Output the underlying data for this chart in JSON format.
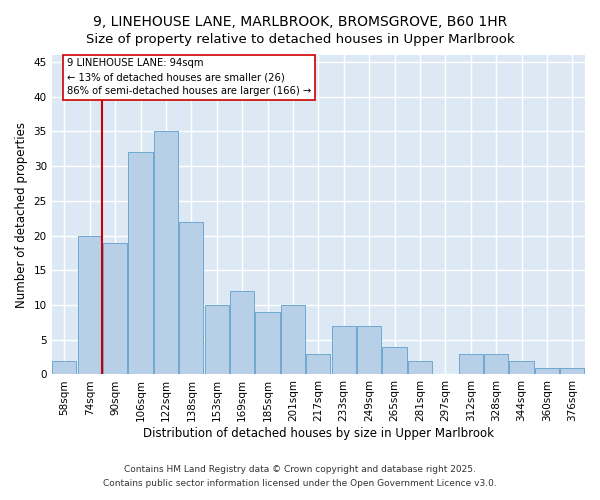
{
  "title1": "9, LINEHOUSE LANE, MARLBROOK, BROMSGROVE, B60 1HR",
  "title2": "Size of property relative to detached houses in Upper Marlbrook",
  "xlabel": "Distribution of detached houses by size in Upper Marlbrook",
  "ylabel": "Number of detached properties",
  "bins": [
    "58sqm",
    "74sqm",
    "90sqm",
    "106sqm",
    "122sqm",
    "138sqm",
    "153sqm",
    "169sqm",
    "185sqm",
    "201sqm",
    "217sqm",
    "233sqm",
    "249sqm",
    "265sqm",
    "281sqm",
    "297sqm",
    "312sqm",
    "328sqm",
    "344sqm",
    "360sqm",
    "376sqm"
  ],
  "values": [
    2,
    20,
    19,
    32,
    35,
    22,
    10,
    12,
    9,
    10,
    3,
    7,
    7,
    4,
    2,
    0,
    3,
    3,
    2,
    1,
    1
  ],
  "bar_color": "#b8cfe8",
  "bar_edge_color": "#6fa8d0",
  "background_color": "#dce9f5",
  "grid_color": "#ffffff",
  "vline_color": "#cc0000",
  "vline_pos": 1.5,
  "annotation_text": "9 LINEHOUSE LANE: 94sqm\n← 13% of detached houses are smaller (26)\n86% of semi-detached houses are larger (166) →",
  "annotation_box_color": "#cc0000",
  "ylim": [
    0,
    46
  ],
  "yticks": [
    0,
    5,
    10,
    15,
    20,
    25,
    30,
    35,
    40,
    45
  ],
  "footnote1": "Contains HM Land Registry data © Crown copyright and database right 2025.",
  "footnote2": "Contains public sector information licensed under the Open Government Licence v3.0.",
  "title1_fontsize": 10,
  "title2_fontsize": 9.5,
  "tick_fontsize": 7.5,
  "ylabel_fontsize": 8.5,
  "xlabel_fontsize": 8.5,
  "annotation_fontsize": 7.2,
  "footnote_fontsize": 6.5
}
